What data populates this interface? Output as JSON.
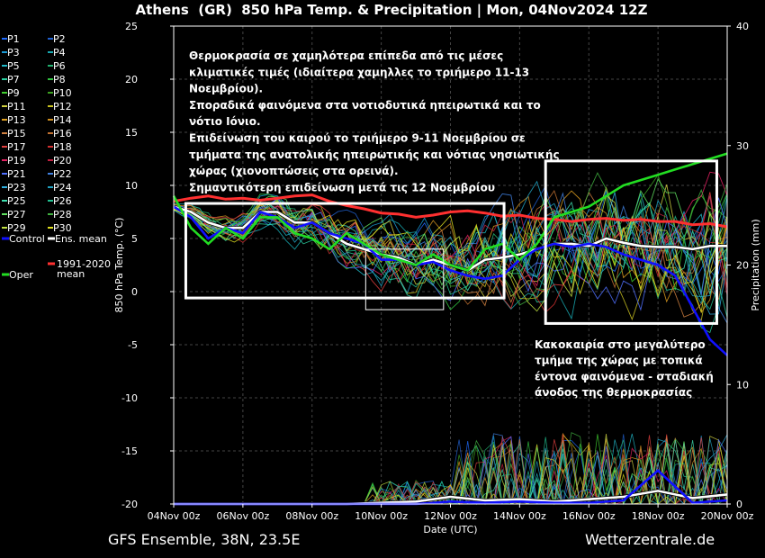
{
  "chart_data": {
    "type": "line",
    "title": "Athens  (GR)  850 hPa Temp. & Precipitation | Mon, 04Nov2024 12Z",
    "xlabel": "Date (UTC)",
    "ylabel": "850 hPa Temp. (°C)",
    "y2label": "Precipitation (mm)",
    "ylim": [
      -20,
      25
    ],
    "y2lim": [
      0,
      40
    ],
    "xlim": [
      0,
      16
    ],
    "x_ticks": [
      {
        "x": 0,
        "label": "04Nov 00z"
      },
      {
        "x": 2,
        "label": "06Nov 00z"
      },
      {
        "x": 4,
        "label": "08Nov 00z"
      },
      {
        "x": 6,
        "label": "10Nov 00z"
      },
      {
        "x": 8,
        "label": "12Nov 00z"
      },
      {
        "x": 10,
        "label": "14Nov 00z"
      },
      {
        "x": 12,
        "label": "16Nov 00z"
      },
      {
        "x": 14,
        "label": "18Nov 00z"
      },
      {
        "x": 16,
        "label": "20Nov 00z"
      }
    ],
    "y_ticks": [
      25,
      20,
      15,
      10,
      5,
      0,
      -5,
      -10,
      -15,
      -20
    ],
    "y2_ticks": [
      40,
      30,
      20,
      10,
      0
    ],
    "legend": [
      {
        "label": "P1",
        "color": "#1e6bff"
      },
      {
        "label": "P2",
        "color": "#2060d0"
      },
      {
        "label": "P3",
        "color": "#1a9ad6"
      },
      {
        "label": "P4",
        "color": "#17a8b0"
      },
      {
        "label": "P5",
        "color": "#20b8c8"
      },
      {
        "label": "P6",
        "color": "#22b070"
      },
      {
        "label": "P7",
        "color": "#2ad0a0"
      },
      {
        "label": "P8",
        "color": "#30c040"
      },
      {
        "label": "P9",
        "color": "#40d030"
      },
      {
        "label": "P10",
        "color": "#3ca020"
      },
      {
        "label": "P11",
        "color": "#d0d040"
      },
      {
        "label": "P12",
        "color": "#c8c020"
      },
      {
        "label": "P13",
        "color": "#e0a020"
      },
      {
        "label": "P14",
        "color": "#d09020"
      },
      {
        "label": "P15",
        "color": "#d08040"
      },
      {
        "label": "P16",
        "color": "#c07030"
      },
      {
        "label": "P17",
        "color": "#e04040"
      },
      {
        "label": "P18",
        "color": "#d03030"
      },
      {
        "label": "P19",
        "color": "#e02060"
      },
      {
        "label": "P20",
        "color": "#c02040"
      },
      {
        "label": "P21",
        "color": "#5070ff"
      },
      {
        "label": "P22",
        "color": "#4080e0"
      },
      {
        "label": "P23",
        "color": "#30b0e0"
      },
      {
        "label": "P24",
        "color": "#20a0c0"
      },
      {
        "label": "P25",
        "color": "#40e0b0"
      },
      {
        "label": "P26",
        "color": "#20c090"
      },
      {
        "label": "P27",
        "color": "#60e060"
      },
      {
        "label": "P28",
        "color": "#40b040"
      },
      {
        "label": "P29",
        "color": "#c0e040"
      },
      {
        "label": "P30",
        "color": "#e0e020"
      },
      {
        "label": "Control",
        "color": "#1010ff"
      },
      {
        "label": "Ens. mean",
        "color": "#ffffff"
      },
      {
        "label": "Oper",
        "color": "#22dd22"
      },
      {
        "label": "1991-2020 mean",
        "color": "#ff3030"
      }
    ],
    "series": [
      {
        "name": "1991-2020 mean",
        "color": "#ff3030",
        "x": [
          0,
          0.5,
          1,
          1.5,
          2,
          2.5,
          3,
          3.5,
          4,
          4.5,
          5,
          5.5,
          6,
          6.5,
          7,
          7.5,
          8,
          8.5,
          9,
          9.5,
          10,
          10.5,
          11,
          11.5,
          12,
          12.5,
          13,
          13.5,
          14,
          14.5,
          15,
          15.5,
          16
        ],
        "y": [
          8.5,
          8.8,
          9,
          8.7,
          8.8,
          8.6,
          8.8,
          9,
          9.1,
          8.5,
          8.1,
          7.8,
          7.4,
          7.3,
          7,
          7.2,
          7.5,
          7.6,
          7.4,
          7.1,
          7.2,
          6.9,
          6.8,
          6.6,
          6.8,
          6.9,
          6.7,
          6.8,
          6.6,
          6.6,
          6.3,
          6.4,
          6.1
        ]
      },
      {
        "name": "Ens. mean",
        "color": "#ffffff",
        "x": [
          0,
          0.5,
          1,
          1.5,
          2,
          2.5,
          3,
          3.5,
          4,
          4.5,
          5,
          5.5,
          6,
          6.5,
          7,
          7.5,
          8,
          8.5,
          9,
          9.5,
          10,
          10.5,
          11,
          11.5,
          12,
          12.5,
          13,
          13.5,
          14,
          14.5,
          15,
          15.5,
          16
        ],
        "y": [
          8,
          7.5,
          6.5,
          6,
          6,
          7.5,
          7.5,
          6.5,
          6.5,
          5.5,
          4.5,
          4,
          3.5,
          3.2,
          2.5,
          3,
          2.5,
          2,
          3,
          3.2,
          3.5,
          4,
          4.5,
          4.5,
          4.3,
          5,
          4.6,
          4.3,
          4.2,
          4.2,
          4,
          4.3,
          4.3
        ]
      },
      {
        "name": "Control",
        "color": "#1010ff",
        "x": [
          0,
          0.5,
          1,
          1.5,
          2,
          2.5,
          3,
          3.5,
          4,
          4.5,
          5,
          5.5,
          6,
          6.5,
          7,
          7.5,
          8,
          8.5,
          9,
          9.5,
          10,
          10.5,
          11,
          11.5,
          12,
          12.5,
          13,
          13.5,
          14,
          14.5,
          15,
          15.5,
          16
        ],
        "y": [
          8,
          7,
          5,
          6,
          5.5,
          7.5,
          7,
          6,
          6.5,
          5.5,
          5,
          4.5,
          3,
          3,
          2.5,
          2.8,
          2,
          1.5,
          1.2,
          1.5,
          3,
          4,
          4.5,
          4.2,
          4.5,
          4.2,
          3.5,
          3,
          2.5,
          1.5,
          -1.5,
          -4.5,
          -6
        ]
      },
      {
        "name": "Oper",
        "color": "#22dd22",
        "x": [
          0,
          0.5,
          1,
          1.5,
          2,
          2.5,
          3,
          3.5,
          4,
          4.5,
          5,
          5.5,
          6,
          6.5,
          7,
          7.5,
          8,
          8.5,
          9,
          9.5,
          10,
          10.5,
          11,
          11.5,
          12,
          12.5,
          13,
          13.5,
          14,
          14.5,
          15,
          15.5,
          16
        ],
        "y": [
          9,
          6,
          4.5,
          6,
          5,
          7,
          7,
          5.5,
          5,
          4,
          5.5,
          4.5,
          3.5,
          3,
          2.5,
          3.5,
          2.5,
          2,
          4,
          4.5,
          3,
          4.5,
          7,
          7.5,
          8,
          9,
          10,
          10.5,
          11,
          11.5,
          12,
          12.5,
          13
        ]
      },
      {
        "name": "Precip ens. mean",
        "color": "#ffffff",
        "axis": "y2",
        "x": [
          0,
          1,
          2,
          3,
          4,
          5,
          6,
          7,
          8,
          9,
          10,
          11,
          12,
          13,
          14,
          15,
          16
        ],
        "y": [
          0,
          0,
          0,
          0,
          0,
          0,
          0.1,
          0.2,
          0.6,
          0.3,
          0.4,
          0.2,
          0.4,
          0.6,
          1.1,
          0.5,
          0.8
        ]
      },
      {
        "name": "Precip control",
        "color": "#1010ff",
        "axis": "y2",
        "x": [
          0,
          1,
          2,
          3,
          4,
          5,
          6,
          7,
          8,
          9,
          10,
          11,
          12,
          13,
          14,
          15,
          16
        ],
        "y": [
          0,
          0,
          0,
          0,
          0,
          0,
          0,
          0,
          0.2,
          0.1,
          0.2,
          0.1,
          0.1,
          0.3,
          2.8,
          0.1,
          0.3
        ]
      }
    ],
    "annotations": [
      "Θερμοκρασία σε χαμηλότερα επίπεδα από τις μέσες",
      "κλιματικές τιμές (ιδιαίτερα χαμηλλες το τριήμερο 11-13",
      "Νοεμβρίου).",
      "Σποραδικά φαινόμενα στα νοτιοδυτικά ηπειρωτικά και το",
      "νότιο Ιόνιο.",
      "Επιδείνωση του καιρού το τριήμερο 9-11 Νοεμβρίου σε",
      "τμήματα της ανατολικής ηπειρωτικής και νότιας νησιωτικής",
      "χώρας (χιονοπτώσεις στα ορεινά).",
      "Σημαντικότερη επιδείνωση μετά τις 12 Νοεμβρίου"
    ],
    "annotations2": [
      "Κακοκαιρία στο μεγαλύτερο",
      "τμήμα της χώρας με τοπικά",
      "έντονα φαινόμενα - σταδιακή",
      "άνοδος της θερμοκρασίας"
    ]
  },
  "footer": {
    "left": "GFS Ensemble, 38N, 23.5E",
    "right": "Wetterzentrale.de"
  }
}
